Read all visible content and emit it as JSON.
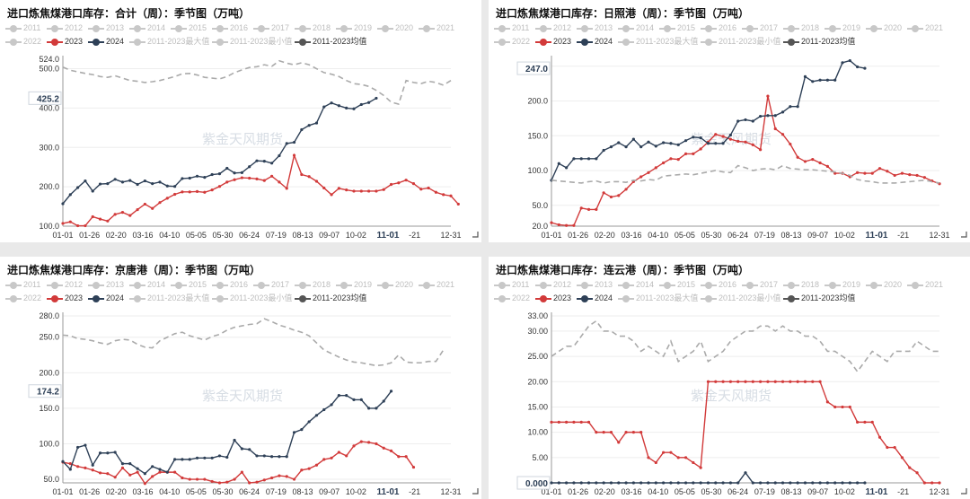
{
  "legend": [
    {
      "label": "2011",
      "color": "#c8c8c8"
    },
    {
      "label": "2012",
      "color": "#c8c8c8"
    },
    {
      "label": "2013",
      "color": "#c8c8c8"
    },
    {
      "label": "2014",
      "color": "#c8c8c8"
    },
    {
      "label": "2015",
      "color": "#c8c8c8"
    },
    {
      "label": "2016",
      "color": "#c8c8c8"
    },
    {
      "label": "2017",
      "color": "#c8c8c8"
    },
    {
      "label": "2018",
      "color": "#c8c8c8"
    },
    {
      "label": "2019",
      "color": "#c8c8c8"
    },
    {
      "label": "2020",
      "color": "#c8c8c8"
    },
    {
      "label": "2021",
      "color": "#c8c8c8"
    },
    {
      "label": "2022",
      "color": "#c8c8c8"
    },
    {
      "label": "2023",
      "color": "#d23a3a",
      "active": true
    },
    {
      "label": "2024",
      "color": "#2e4057",
      "active": true
    },
    {
      "label": "2011-2023最大值",
      "color": "#c8c8c8"
    },
    {
      "label": "2011-2023最小值",
      "color": "#c8c8c8"
    },
    {
      "label": "2011-2023均值",
      "color": "#555555",
      "active": true
    }
  ],
  "watermark": "紫金天风期货",
  "x_tick_labels": [
    "01-01",
    "01-26",
    "02-20",
    "03-16",
    "04-10",
    "05-05",
    "05-30",
    "06-24",
    "07-19",
    "08-13",
    "09-07",
    "10-02",
    "11-01",
    "-21",
    "12-31"
  ],
  "colors": {
    "y2023": "#d23a3a",
    "y2024": "#2e4057",
    "avg": "#aaaaaa"
  },
  "chart_data": [
    {
      "type": "line",
      "title": "进口炼焦煤港口库存：合计（周）：季节图（万吨）",
      "ylim": [
        100,
        524
      ],
      "y_ticks": [
        100,
        200,
        300,
        400,
        500
      ],
      "y_max_label": "524.0",
      "highlight_value": "425.2",
      "x_range": [
        0,
        52
      ],
      "series": [
        {
          "name": "2023",
          "values": [
            107,
            111,
            101,
            101,
            124,
            118,
            113,
            130,
            135,
            127,
            142,
            156,
            145,
            160,
            171,
            181,
            187,
            187,
            188,
            186,
            192,
            201,
            212,
            218,
            223,
            222,
            220,
            216,
            227,
            212,
            196,
            280,
            231,
            226,
            214,
            197,
            180,
            196,
            192,
            189,
            189,
            189,
            189,
            193,
            206,
            210,
            217,
            208,
            194,
            197,
            186,
            180,
            177,
            156
          ]
        },
        {
          "name": "2024",
          "values": [
            157,
            180,
            198,
            215,
            189,
            207,
            208,
            219,
            212,
            216,
            206,
            215,
            208,
            212,
            202,
            201,
            221,
            222,
            227,
            224,
            231,
            233,
            247,
            235,
            236,
            251,
            266,
            265,
            260,
            279,
            310,
            313,
            345,
            356,
            362,
            403,
            413,
            406,
            400,
            398,
            409,
            414,
            425
          ]
        },
        {
          "name": "2011-2023均值",
          "values": [
            504,
            496,
            492,
            488,
            485,
            480,
            478,
            482,
            476,
            470,
            468,
            465,
            467,
            470,
            475,
            480,
            487,
            488,
            484,
            478,
            476,
            474,
            480,
            490,
            497,
            503,
            505,
            510,
            506,
            520,
            514,
            510,
            515,
            510,
            500,
            490,
            486,
            480,
            470,
            462,
            460,
            455,
            445,
            432,
            415,
            410,
            470,
            465,
            462,
            468,
            465,
            458,
            470
          ]
        }
      ]
    },
    {
      "type": "line",
      "title": "进口炼焦煤港口库存：日照港（周）：季节图（万吨）",
      "ylim": [
        20,
        260
      ],
      "y_ticks": [
        20,
        50,
        100,
        150,
        200,
        250
      ],
      "highlight_value": "247.0",
      "x_range": [
        0,
        52
      ],
      "series": [
        {
          "name": "2023",
          "values": [
            25,
            22,
            21,
            21,
            46,
            44,
            44,
            68,
            62,
            64,
            73,
            84,
            91,
            97,
            104,
            111,
            117,
            116,
            124,
            124,
            131,
            141,
            152,
            149,
            145,
            142,
            141,
            137,
            130,
            207,
            160,
            152,
            138,
            119,
            113,
            116,
            111,
            106,
            96,
            96,
            91,
            97,
            96,
            96,
            103,
            99,
            93,
            96,
            94,
            93,
            90,
            85,
            81
          ]
        },
        {
          "name": "2024",
          "values": [
            86,
            110,
            104,
            117,
            117,
            117,
            117,
            129,
            134,
            140,
            134,
            145,
            134,
            141,
            135,
            140,
            139,
            137,
            143,
            148,
            147,
            139,
            139,
            139,
            151,
            171,
            173,
            171,
            178,
            179,
            179,
            184,
            192,
            192,
            235,
            228,
            230,
            230,
            230,
            255,
            258,
            249,
            247
          ]
        },
        {
          "name": "2011-2023均值",
          "values": [
            86,
            85,
            84,
            83,
            82,
            84,
            85,
            82,
            84,
            84,
            83,
            86,
            85,
            87,
            86,
            92,
            93,
            94,
            95,
            94,
            96,
            98,
            100,
            98,
            97,
            107,
            104,
            100,
            102,
            103,
            101,
            107,
            103,
            102,
            101,
            101,
            100,
            99,
            98,
            96,
            93,
            87,
            85,
            84,
            82,
            82,
            82,
            83,
            84,
            85,
            86,
            84,
            82
          ]
        }
      ]
    },
    {
      "type": "line",
      "title": "进口炼焦煤港口库存：京唐港（周）：季节图（万吨）",
      "ylim": [
        45,
        280
      ],
      "y_ticks": [
        50,
        100,
        150,
        200,
        250,
        280
      ],
      "highlight_value": "174.2",
      "x_range": [
        0,
        52
      ],
      "series": [
        {
          "name": "2023",
          "values": [
            74,
            72,
            68,
            66,
            63,
            59,
            58,
            53,
            66,
            56,
            60,
            44,
            54,
            60,
            60,
            60,
            52,
            50,
            50,
            50,
            47,
            45,
            46,
            50,
            60,
            45,
            46,
            49,
            52,
            55,
            54,
            50,
            63,
            65,
            70,
            78,
            80,
            88,
            83,
            97,
            103,
            102,
            100,
            94,
            90,
            82,
            82,
            67
          ]
        },
        {
          "name": "2024",
          "values": [
            75,
            64,
            95,
            98,
            70,
            87,
            87,
            88,
            72,
            72,
            65,
            58,
            68,
            64,
            60,
            78,
            78,
            78,
            80,
            80,
            80,
            83,
            81,
            105,
            93,
            92,
            83,
            83,
            82,
            82,
            82,
            116,
            120,
            131,
            140,
            148,
            155,
            168,
            168,
            162,
            162,
            150,
            150,
            160,
            174
          ]
        },
        {
          "name": "2011-2023均值",
          "values": [
            253,
            252,
            248,
            247,
            245,
            242,
            240,
            245,
            247,
            246,
            240,
            236,
            235,
            245,
            250,
            255,
            257,
            252,
            249,
            246,
            251,
            254,
            260,
            264,
            266,
            268,
            269,
            276,
            272,
            267,
            264,
            260,
            257,
            252,
            242,
            232,
            227,
            222,
            218,
            215,
            214,
            212,
            210,
            211,
            214,
            225,
            215,
            214,
            214,
            216,
            216,
            232
          ]
        }
      ]
    },
    {
      "type": "line",
      "title": "进口炼焦煤港口库存：连云港（周）：季节图（万吨）",
      "ylim": [
        0,
        33
      ],
      "y_ticks": [
        0,
        5,
        10,
        15,
        20,
        25,
        30,
        33
      ],
      "highlight_value": "0.000",
      "x_range": [
        0,
        52
      ],
      "series": [
        {
          "name": "2023",
          "values": [
            12,
            12,
            12,
            12,
            12,
            12,
            10,
            10,
            10,
            8,
            10,
            10,
            10,
            5,
            4,
            6,
            6,
            5,
            5,
            4,
            3,
            20,
            20,
            20,
            20,
            20,
            20,
            20,
            20,
            20,
            20,
            20,
            20,
            20,
            20,
            20,
            20,
            16,
            15,
            15,
            15,
            12,
            12,
            12,
            9,
            7,
            7,
            5,
            3,
            2,
            0,
            0,
            0
          ]
        },
        {
          "name": "2024",
          "values": [
            0,
            0,
            0,
            0,
            0,
            0,
            0,
            0,
            0,
            0,
            0,
            0,
            0,
            0,
            0,
            0,
            0,
            0,
            0,
            0,
            0,
            0,
            0,
            0,
            0,
            0,
            2,
            0,
            0,
            0,
            0,
            0,
            0,
            0,
            0,
            0,
            0,
            0,
            0,
            0,
            0,
            0,
            0
          ]
        },
        {
          "name": "2011-2023均值",
          "values": [
            25,
            26,
            27,
            27,
            29,
            31,
            32,
            30,
            30,
            29,
            29,
            28,
            26,
            27,
            26,
            25,
            28,
            24,
            25,
            26,
            28,
            24,
            25,
            26,
            28,
            29,
            30,
            30,
            31,
            31,
            30,
            31,
            30,
            30,
            29,
            29,
            28,
            26,
            26,
            25,
            24,
            22,
            24,
            26,
            25,
            24,
            26,
            26,
            26,
            28,
            27,
            26,
            26
          ]
        }
      ]
    }
  ]
}
